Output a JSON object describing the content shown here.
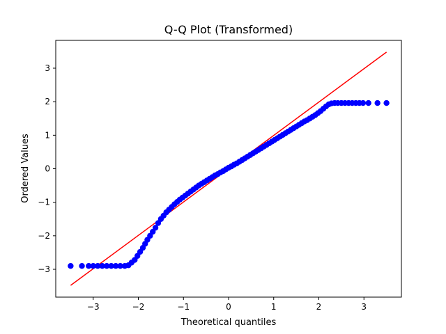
{
  "chart_data": {
    "type": "scatter",
    "title": "Q-Q Plot (Transformed)",
    "xlabel": "Theoretical quantiles",
    "ylabel": "Ordered Values",
    "xlim": [
      -3.83,
      3.83
    ],
    "ylim": [
      -3.83,
      3.83
    ],
    "xticks": [
      -3,
      -2,
      -1,
      0,
      1,
      2,
      3
    ],
    "yticks": [
      -3,
      -2,
      -1,
      0,
      1,
      2,
      3
    ],
    "xtick_labels": [
      "−3",
      "−2",
      "−1",
      "0",
      "1",
      "2",
      "3"
    ],
    "ytick_labels": [
      "−3",
      "−2",
      "−1",
      "0",
      "1",
      "2",
      "3"
    ],
    "grid": false,
    "series": [
      {
        "marker": "circle",
        "color": "#0000ff",
        "x": [
          -3.5,
          -3.25,
          -3.1,
          -3.0,
          -2.9,
          -2.8,
          -2.7,
          -2.6,
          -2.5,
          -2.4,
          -2.3,
          -2.22,
          -2.15,
          -2.08,
          -2.02,
          -1.96,
          -1.9,
          -1.85,
          -1.8,
          -1.74,
          -1.68,
          -1.62,
          -1.56,
          -1.5,
          -1.44,
          -1.38,
          -1.32,
          -1.26,
          -1.2,
          -1.14,
          -1.08,
          -1.02,
          -0.96,
          -0.9,
          -0.84,
          -0.78,
          -0.72,
          -0.66,
          -0.6,
          -0.54,
          -0.48,
          -0.42,
          -0.36,
          -0.3,
          -0.24,
          -0.18,
          -0.12,
          -0.06,
          0.0,
          0.06,
          0.12,
          0.18,
          0.24,
          0.3,
          0.36,
          0.42,
          0.48,
          0.54,
          0.6,
          0.66,
          0.72,
          0.78,
          0.84,
          0.9,
          0.96,
          1.02,
          1.08,
          1.14,
          1.2,
          1.26,
          1.32,
          1.38,
          1.44,
          1.5,
          1.56,
          1.62,
          1.68,
          1.74,
          1.8,
          1.86,
          1.92,
          1.98,
          2.04,
          2.1,
          2.16,
          2.22,
          2.28,
          2.35,
          2.42,
          2.5,
          2.58,
          2.66,
          2.74,
          2.82,
          2.9,
          2.98,
          3.1,
          3.3,
          3.5
        ],
        "y": [
          -2.9,
          -2.9,
          -2.9,
          -2.9,
          -2.9,
          -2.9,
          -2.9,
          -2.9,
          -2.9,
          -2.9,
          -2.9,
          -2.88,
          -2.8,
          -2.72,
          -2.6,
          -2.48,
          -2.36,
          -2.24,
          -2.12,
          -2.0,
          -1.88,
          -1.76,
          -1.62,
          -1.5,
          -1.4,
          -1.3,
          -1.22,
          -1.14,
          -1.06,
          -0.99,
          -0.92,
          -0.86,
          -0.8,
          -0.74,
          -0.68,
          -0.62,
          -0.56,
          -0.5,
          -0.45,
          -0.4,
          -0.35,
          -0.3,
          -0.25,
          -0.2,
          -0.16,
          -0.11,
          -0.07,
          -0.02,
          0.03,
          0.07,
          0.12,
          0.16,
          0.21,
          0.26,
          0.31,
          0.36,
          0.41,
          0.46,
          0.51,
          0.56,
          0.61,
          0.66,
          0.71,
          0.76,
          0.81,
          0.86,
          0.91,
          0.96,
          1.01,
          1.06,
          1.11,
          1.16,
          1.21,
          1.26,
          1.31,
          1.36,
          1.41,
          1.45,
          1.5,
          1.55,
          1.6,
          1.66,
          1.72,
          1.79,
          1.86,
          1.92,
          1.95,
          1.96,
          1.96,
          1.96,
          1.96,
          1.96,
          1.96,
          1.96,
          1.96,
          1.96,
          1.96,
          1.96,
          1.96
        ]
      }
    ],
    "reference_line": {
      "color": "#ff0000",
      "x": [
        -3.5,
        3.5
      ],
      "y": [
        -3.48,
        3.48
      ]
    }
  }
}
